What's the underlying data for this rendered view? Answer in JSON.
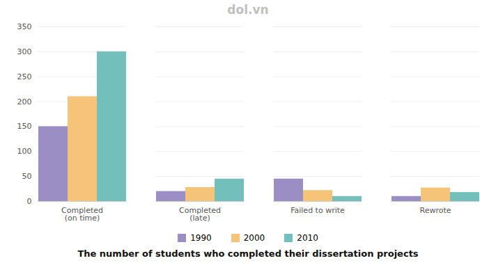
{
  "chart_data": {
    "type": "bar",
    "title": "The number of students who completed their dissertation projects",
    "categories": [
      "Completed\n(on time)",
      "Completed\n(late)",
      "Failed to write",
      "Rewrote"
    ],
    "series": [
      {
        "name": "1990",
        "color": "#9b8ec4",
        "values": [
          150,
          20,
          45,
          10
        ]
      },
      {
        "name": "2000",
        "color": "#f5c478",
        "values": [
          210,
          28,
          22,
          27
        ]
      },
      {
        "name": "2010",
        "color": "#72bfbc",
        "values": [
          300,
          45,
          10,
          18
        ]
      }
    ],
    "ylim": [
      0,
      350
    ],
    "yticks": [
      0,
      50,
      100,
      150,
      200,
      250,
      300,
      350
    ],
    "grid": true,
    "legend": "bottom",
    "annotations": [
      {
        "text": "dol.vn",
        "color": "#c0c0c0"
      }
    ]
  }
}
